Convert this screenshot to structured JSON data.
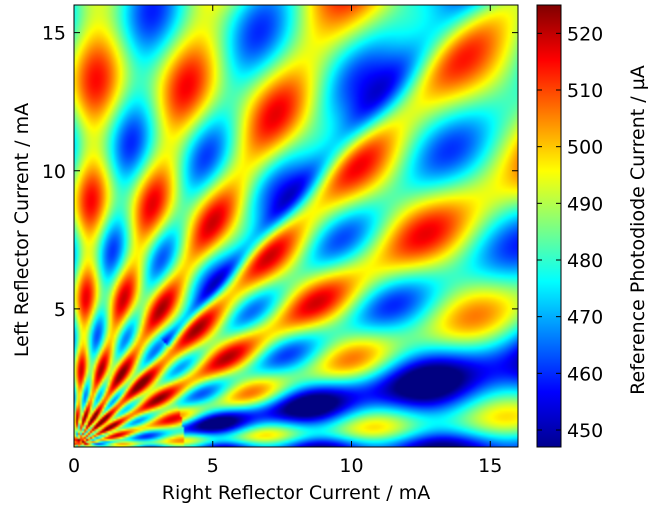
{
  "chart_data": {
    "type": "heatmap",
    "title": "",
    "xlabel": "Right Reflector Current / mA",
    "ylabel": "Left Reflector Current / mA",
    "xlim": [
      0,
      16
    ],
    "ylim": [
      0,
      16
    ],
    "xticks": [
      0,
      5,
      10,
      15
    ],
    "yticks": [
      5,
      10,
      15
    ],
    "colorbar": {
      "label": "Reference Photodiode Current / µA",
      "range": [
        447,
        525
      ],
      "ticks": [
        450,
        460,
        470,
        480,
        490,
        500,
        510,
        520
      ],
      "colormap": "jet"
    },
    "grid": false,
    "legend": "none"
  }
}
